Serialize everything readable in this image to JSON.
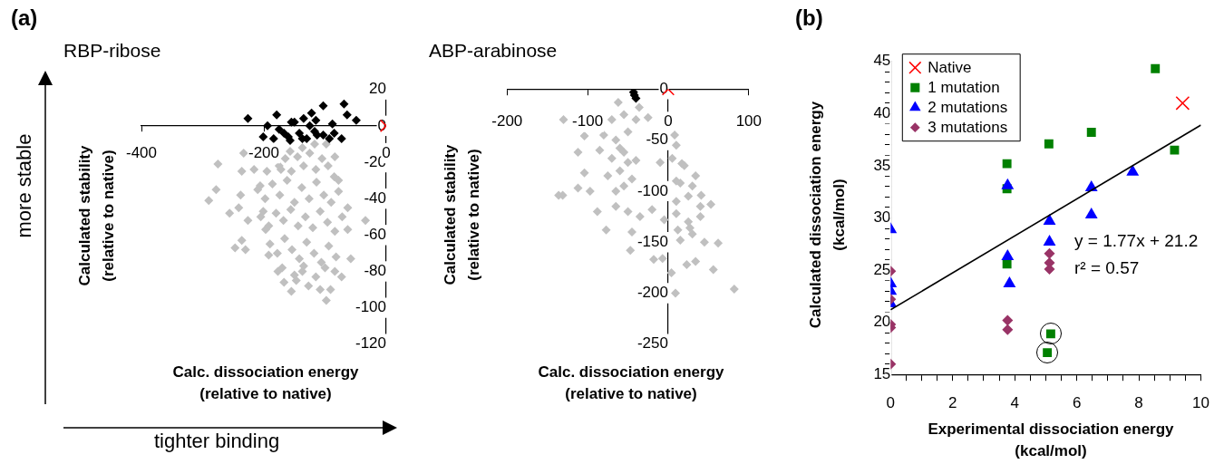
{
  "chart_data": [
    {
      "type": "scatter",
      "title": "RBP-ribose",
      "xlabel": "Calc. dissociation energy\n(relative to native)",
      "ylabel": "Calculated stability\n(relative to native)",
      "annotations": [
        "(a)",
        "more stable",
        "tighter binding"
      ],
      "xlim": [
        -400,
        0
      ],
      "xticks": [
        -400,
        -200,
        0
      ],
      "ylim": [
        -120,
        20
      ],
      "yticks": [
        -120,
        -100,
        -80,
        -60,
        -40,
        -20,
        0,
        20
      ],
      "grid": false,
      "legend": false,
      "series": [
        {
          "color": "#c0c0c0",
          "marker": "diamond",
          "x": [
            -290,
            -278,
            -275,
            -256,
            -247,
            -230,
            -236,
            -233,
            -236,
            -238,
            -241,
            -226,
            -216,
            -206,
            -201,
            -197,
            -192,
            -177,
            -167,
            -155,
            -147,
            -137,
            -127,
            -108,
            -98,
            -91,
            -84,
            -73,
            -58,
            -63,
            -63,
            -34,
            -78,
            -84,
            -98,
            -117,
            -137,
            -157,
            -172,
            -195,
            -175,
            -165,
            -155,
            -145,
            -135,
            -125,
            -115,
            -105,
            -95,
            -85,
            -210,
            -198,
            -186,
            -174,
            -162,
            -150,
            -138,
            -126,
            -114,
            -102,
            -90,
            -78,
            -205,
            -192,
            -180,
            -168,
            -156,
            -144,
            -132,
            -120,
            -108,
            -96,
            -84,
            -72,
            -190,
            -178,
            -166,
            -154,
            -142,
            -130,
            -118,
            -106,
            -94,
            -82,
            -170,
            -150,
            -135,
            -115,
            -100
          ],
          "values": [
            -41,
            -35,
            -21,
            -48,
            -67,
            -68,
            -63,
            -15,
            -25,
            -38,
            -45,
            -52,
            -24,
            -33,
            -47,
            -57,
            -71,
            -80,
            -86,
            -91,
            -85,
            -80,
            -88,
            -90,
            -96,
            -90,
            -80,
            -83,
            -73,
            -57,
            -45,
            -52,
            -30,
            -17,
            -10,
            -10,
            -12,
            -14,
            -24,
            -25,
            -22,
            -18,
            -25,
            -17,
            -22,
            -15,
            -24,
            -18,
            -22,
            -28,
            -35,
            -40,
            -32,
            -38,
            -30,
            -42,
            -34,
            -40,
            -31,
            -38,
            -42,
            -36,
            -50,
            -55,
            -48,
            -52,
            -46,
            -55,
            -50,
            -56,
            -47,
            -53,
            -58,
            -50,
            -65,
            -70,
            -62,
            -68,
            -73,
            -64,
            -70,
            -75,
            -66,
            -72,
            -78,
            -82,
            -77,
            -83,
            -78
          ]
        },
        {
          "color": "#000000",
          "marker": "diamond",
          "x": [
            -226,
            -194,
            -201,
            -179,
            -184,
            -175,
            -167,
            -160,
            -155,
            -150,
            -142,
            -135,
            -137,
            -122,
            -125,
            -115,
            -117,
            -113,
            -103,
            -103,
            -93,
            -88,
            -85,
            -73,
            -69,
            -64,
            -49,
            -130,
            -157
          ],
          "values": [
            4,
            0,
            -6,
            6,
            -7,
            -2,
            -4,
            -6,
            2,
            2,
            -4,
            4,
            -7,
            7,
            0,
            3,
            -3,
            -5,
            11,
            -5,
            -7,
            1,
            -4,
            -7,
            12,
            6,
            3,
            -7,
            -8
          ]
        },
        {
          "color": "#ff0000",
          "marker": "cross",
          "x": [
            0
          ],
          "values": [
            0
          ]
        }
      ]
    },
    {
      "type": "scatter",
      "title": "ABP-arabinose",
      "xlabel": "Calc. dissociation energy\n(relative to native)",
      "ylabel": "Calculated stability\n(relative to native)",
      "xlim": [
        -200,
        100
      ],
      "xticks": [
        -200,
        -100,
        0,
        100
      ],
      "ylim": [
        -250,
        0
      ],
      "yticks": [
        -250,
        -200,
        -150,
        -100,
        -50,
        0
      ],
      "grid": false,
      "legend": false,
      "series": [
        {
          "color": "#c0c0c0",
          "marker": "diamond",
          "x": [
            -130,
            -136,
            -131,
            -112,
            -97,
            -104,
            -112,
            -104,
            -88,
            -77,
            -62,
            -47,
            -36,
            -18,
            -7,
            4,
            9,
            82,
            56,
            62,
            53,
            34,
            17,
            41,
            27,
            23,
            34,
            -70,
            -55,
            -40,
            -25,
            -80,
            -65,
            -50,
            10,
            -85,
            -70,
            -55,
            -40,
            -10,
            5,
            20,
            -75,
            -60,
            -45,
            15,
            30,
            -65,
            10,
            25,
            40,
            -50,
            -35,
            -20,
            -5,
            10,
            25,
            40,
            15,
            30,
            45,
            -60,
            8,
            -55,
            10,
            -45,
            12,
            -65,
            -50
          ],
          "values": [
            -30,
            -104,
            -104,
            -97,
            -100,
            -46,
            -62,
            -82,
            -120,
            -138,
            -13,
            -158,
            -18,
            -167,
            -166,
            -180,
            -200,
            -196,
            -177,
            -151,
            -113,
            -85,
            -73,
            -104,
            -136,
            -172,
            -169,
            -30,
            -25,
            -30,
            -28,
            -45,
            -50,
            -42,
            -55,
            -60,
            -68,
            -62,
            -70,
            -72,
            -68,
            -75,
            -85,
            -80,
            -88,
            -92,
            -95,
            -100,
            -110,
            -105,
            -115,
            -120,
            -125,
            -118,
            -128,
            -122,
            -130,
            -125,
            -148,
            -142,
            -150,
            -58,
            -45,
            -95,
            -90,
            -140,
            -138,
            -115,
            -72
          ]
        },
        {
          "color": "#000000",
          "marker": "diamond",
          "x": [
            -43,
            -42,
            -40
          ],
          "values": [
            -3,
            -6,
            -9
          ]
        },
        {
          "color": "#ff0000",
          "marker": "cross",
          "x": [
            0
          ],
          "values": [
            0
          ]
        }
      ]
    },
    {
      "type": "scatter",
      "xlabel": "Experimental dissociation energy\n(kcal/mol)",
      "ylabel": "Calculated dissociation energy\n(kcal/mol)",
      "annotations": [
        "(b)",
        "y = 1.77x + 21.2",
        "r² = 0.57"
      ],
      "xlim": [
        0,
        10
      ],
      "xticks": [
        0,
        {
          "value": 0.5,
          "label": null
        },
        {
          "value": 1,
          "label": null
        },
        {
          "value": 1.5,
          "label": null
        },
        2,
        {
          "value": 2.5,
          "label": null
        },
        {
          "value": 3,
          "label": null
        },
        {
          "value": 3.5,
          "label": null
        },
        4,
        {
          "value": 4.5,
          "label": null
        },
        {
          "value": 5,
          "label": null
        },
        {
          "value": 5.5,
          "label": null
        },
        6,
        {
          "value": 6.5,
          "label": null
        },
        {
          "value": 7,
          "label": null
        },
        {
          "value": 7.5,
          "label": null
        },
        8,
        {
          "value": 8.5,
          "label": null
        },
        {
          "value": 9,
          "label": null
        },
        {
          "value": 9.5,
          "label": null
        },
        10
      ],
      "ylim": [
        15,
        45
      ],
      "yticks": [
        15,
        {
          "value": 16,
          "label": null
        },
        {
          "value": 17,
          "label": null
        },
        {
          "value": 18,
          "label": null
        },
        {
          "value": 19,
          "label": null
        },
        20,
        {
          "value": 21,
          "label": null
        },
        {
          "value": 22,
          "label": null
        },
        {
          "value": 23,
          "label": null
        },
        {
          "value": 24,
          "label": null
        },
        25,
        {
          "value": 26,
          "label": null
        },
        {
          "value": 27,
          "label": null
        },
        {
          "value": 28,
          "label": null
        },
        {
          "value": 29,
          "label": null
        },
        30,
        {
          "value": 31,
          "label": null
        },
        {
          "value": 32,
          "label": null
        },
        {
          "value": 33,
          "label": null
        },
        {
          "value": 34,
          "label": null
        },
        35,
        {
          "value": 36,
          "label": null
        },
        {
          "value": 37,
          "label": null
        },
        {
          "value": 38,
          "label": null
        },
        {
          "value": 39,
          "label": null
        },
        40,
        {
          "value": 41,
          "label": null
        },
        {
          "value": 42,
          "label": null
        },
        {
          "value": 43,
          "label": null
        },
        {
          "value": 44,
          "label": null
        },
        45
      ],
      "grid": false,
      "legend": "top left",
      "series": [
        {
          "name": "Native",
          "color": "#ff0000",
          "marker": "cross",
          "x": [
            9.41
          ],
          "values": [
            41.0
          ]
        },
        {
          "name": "1 mutation",
          "color": "#008000",
          "marker": "square",
          "x": [
            8.53,
            6.47,
            5.1,
            3.75,
            3.75,
            3.75,
            9.15,
            5.16,
            5.05
          ],
          "values": [
            44.3,
            38.2,
            37.1,
            35.2,
            32.8,
            25.6,
            36.5,
            18.9,
            17.1
          ]
        },
        {
          "name": "2 mutations",
          "color": "#0000ff",
          "marker": "triangle",
          "x": [
            0,
            0,
            0,
            0,
            3.77,
            3.77,
            3.83,
            5.12,
            5.12,
            6.47,
            6.47,
            7.8
          ],
          "values": [
            28.9,
            23.7,
            23.0,
            21.8,
            33.1,
            26.3,
            23.7,
            29.7,
            27.7,
            32.9,
            30.3,
            34.4
          ]
        },
        {
          "name": "3 mutations",
          "color": "#993366",
          "marker": "diamond",
          "x": [
            0,
            0,
            0,
            0,
            0,
            3.77,
            3.77,
            5.12,
            5.12,
            5.12
          ],
          "values": [
            24.9,
            22.2,
            19.8,
            19.5,
            16.0,
            20.2,
            19.3,
            26.6,
            25.7,
            25.1
          ]
        },
        {
          "type": "line",
          "color": "#000000",
          "x": [
            0,
            10
          ],
          "values": [
            21.2,
            38.9
          ]
        }
      ]
    }
  ]
}
